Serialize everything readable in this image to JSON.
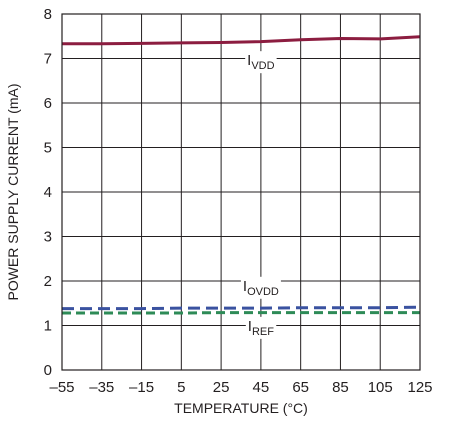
{
  "chart_data": {
    "type": "line",
    "title": "",
    "xlabel": "TEMPERATURE (°C)",
    "ylabel": "POWER SUPPLY CURRENT (mA)",
    "xlim": [
      -55,
      125
    ],
    "ylim": [
      0,
      8
    ],
    "xticks": [
      -55,
      -35,
      -15,
      5,
      25,
      45,
      65,
      85,
      105,
      125
    ],
    "xtick_labels": [
      "–55",
      "–35",
      "–15",
      "5",
      "25",
      "45",
      "65",
      "85",
      "105",
      "125"
    ],
    "yticks": [
      0,
      1,
      2,
      3,
      4,
      5,
      6,
      7,
      8
    ],
    "ytick_labels": [
      "0",
      "1",
      "2",
      "3",
      "4",
      "5",
      "6",
      "7",
      "8"
    ],
    "grid": true,
    "legend": "none",
    "series": [
      {
        "key": "ivdd",
        "label_main": "I",
        "label_sub": "VDD",
        "color": "#8c1d40",
        "style": "solid",
        "label_at": [
          45,
          6.85
        ],
        "x": [
          -55,
          -35,
          -15,
          5,
          25,
          45,
          65,
          85,
          105,
          125
        ],
        "y": [
          7.33,
          7.33,
          7.34,
          7.35,
          7.36,
          7.38,
          7.42,
          7.45,
          7.44,
          7.49
        ]
      },
      {
        "key": "iovdd",
        "label_main": "I",
        "label_sub": "OVDD",
        "color": "#3a52a0",
        "style": "dashed",
        "label_at": [
          45,
          1.78
        ],
        "x": [
          -55,
          -35,
          -15,
          5,
          25,
          45,
          65,
          85,
          105,
          125
        ],
        "y": [
          1.38,
          1.38,
          1.38,
          1.39,
          1.39,
          1.39,
          1.4,
          1.4,
          1.4,
          1.41
        ]
      },
      {
        "key": "iref",
        "label_main": "I",
        "label_sub": "REF",
        "color": "#2e8b57",
        "style": "dashed",
        "label_at": [
          45,
          0.88
        ],
        "x": [
          -55,
          -35,
          -15,
          5,
          25,
          45,
          65,
          85,
          105,
          125
        ],
        "y": [
          1.28,
          1.28,
          1.28,
          1.28,
          1.29,
          1.29,
          1.29,
          1.29,
          1.29,
          1.29
        ]
      }
    ]
  }
}
